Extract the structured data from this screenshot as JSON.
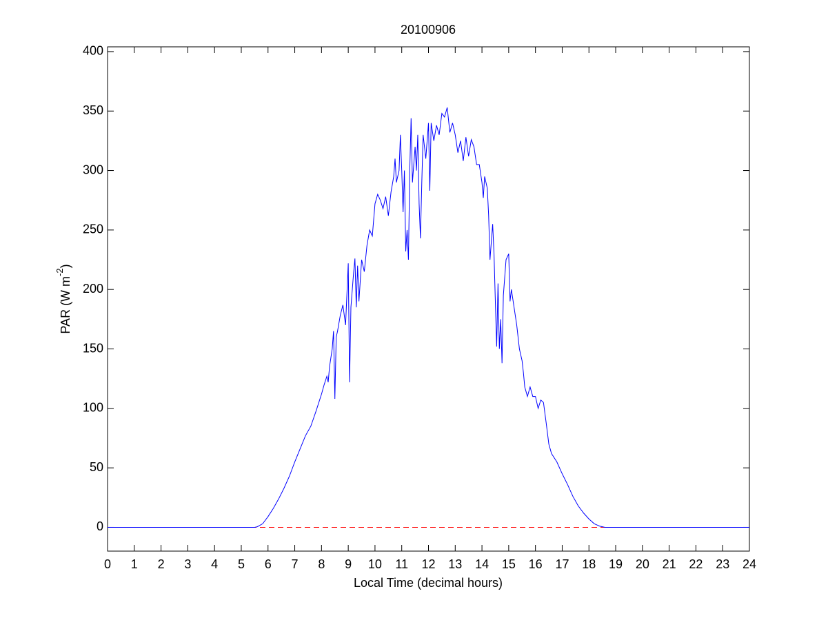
{
  "chart_data": {
    "type": "line",
    "title": "20100906",
    "xlabel": "Local Time (decimal hours)",
    "ylabel_parts": [
      "PAR (W m",
      "-2",
      ")"
    ],
    "x": [
      0,
      5.5,
      5.6,
      5.8,
      6.0,
      6.2,
      6.4,
      6.6,
      6.8,
      7.0,
      7.2,
      7.4,
      7.6,
      7.8,
      8.0,
      8.1,
      8.2,
      8.25,
      8.3,
      8.4,
      8.45,
      8.5,
      8.55,
      8.6,
      8.7,
      8.8,
      8.9,
      9.0,
      9.05,
      9.1,
      9.2,
      9.25,
      9.3,
      9.35,
      9.4,
      9.5,
      9.6,
      9.7,
      9.8,
      9.9,
      10.0,
      10.1,
      10.2,
      10.3,
      10.4,
      10.5,
      10.6,
      10.7,
      10.75,
      10.8,
      10.9,
      10.95,
      11.0,
      11.05,
      11.1,
      11.15,
      11.2,
      11.25,
      11.3,
      11.35,
      11.4,
      11.5,
      11.55,
      11.6,
      11.65,
      11.7,
      11.75,
      11.8,
      11.9,
      12.0,
      12.05,
      12.1,
      12.2,
      12.3,
      12.4,
      12.5,
      12.6,
      12.7,
      12.8,
      12.9,
      13.0,
      13.1,
      13.2,
      13.3,
      13.4,
      13.5,
      13.6,
      13.7,
      13.8,
      13.9,
      14.0,
      14.05,
      14.1,
      14.2,
      14.25,
      14.3,
      14.35,
      14.4,
      14.45,
      14.5,
      14.55,
      14.6,
      14.65,
      14.7,
      14.75,
      14.8,
      14.9,
      15.0,
      15.05,
      15.1,
      15.2,
      15.3,
      15.4,
      15.5,
      15.55,
      15.6,
      15.7,
      15.8,
      15.9,
      16.0,
      16.1,
      16.2,
      16.3,
      16.4,
      16.5,
      16.6,
      16.8,
      17.0,
      17.2,
      17.4,
      17.6,
      17.8,
      18.0,
      18.2,
      18.4,
      18.6,
      24
    ],
    "series": [
      {
        "color": "#0000ff",
        "values": [
          0,
          0,
          0.5,
          3,
          9,
          16,
          24,
          33,
          43,
          55,
          66,
          77,
          85,
          98,
          112,
          120,
          127,
          122,
          135,
          150,
          165,
          108,
          160,
          165,
          178,
          187,
          170,
          222,
          122,
          185,
          214,
          226,
          185,
          220,
          190,
          225,
          215,
          237,
          250,
          245,
          272,
          280,
          275,
          268,
          278,
          262,
          282,
          295,
          310,
          290,
          300,
          330,
          300,
          265,
          300,
          232,
          250,
          225,
          300,
          344,
          290,
          320,
          300,
          330,
          272,
          243,
          290,
          330,
          310,
          340,
          283,
          340,
          325,
          338,
          330,
          348,
          345,
          353,
          332,
          340,
          330,
          315,
          325,
          308,
          328,
          312,
          326,
          320,
          305,
          305,
          290,
          277,
          295,
          285,
          262,
          225,
          240,
          255,
          230,
          190,
          152,
          205,
          150,
          175,
          138,
          195,
          225,
          230,
          190,
          200,
          185,
          170,
          150,
          140,
          130,
          118,
          110,
          118,
          110,
          110,
          100,
          107,
          105,
          88,
          70,
          62,
          55,
          45,
          36,
          26,
          18,
          12,
          7,
          3,
          1,
          0,
          0
        ]
      }
    ],
    "hline": {
      "value": 0,
      "color": "#ff0000",
      "style": "dashed"
    },
    "xlim": [
      0,
      24
    ],
    "xticks": [
      0,
      1,
      2,
      3,
      4,
      5,
      6,
      7,
      8,
      9,
      10,
      11,
      12,
      13,
      14,
      15,
      16,
      17,
      18,
      19,
      20,
      21,
      22,
      23,
      24
    ],
    "ylim": [
      -20,
      404
    ],
    "yticks": [
      0,
      50,
      100,
      150,
      200,
      250,
      300,
      350,
      400
    ]
  }
}
